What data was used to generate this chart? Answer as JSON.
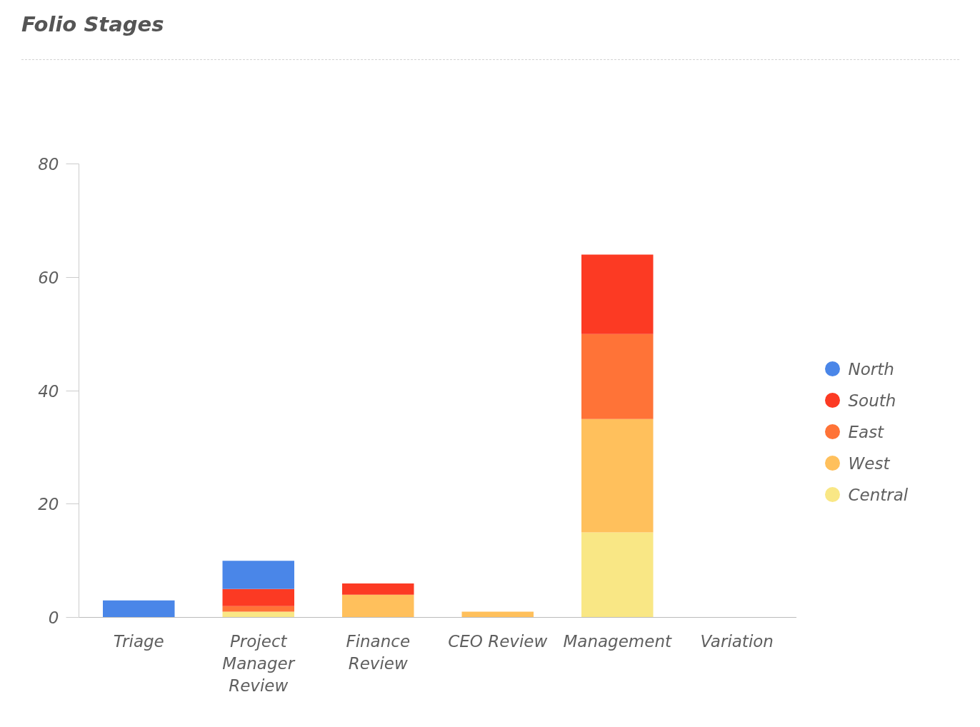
{
  "chart_data": {
    "type": "bar",
    "title": "Folio Stages",
    "categories": [
      "Triage",
      "Project Manager Review",
      "Finance Review",
      "CEO Review",
      "Management",
      "Variation"
    ],
    "stacked": true,
    "series": [
      {
        "name": "Central",
        "color": "#f9e785",
        "values": [
          0,
          1,
          0,
          0,
          15,
          0
        ]
      },
      {
        "name": "West",
        "color": "#ffc05c",
        "values": [
          0,
          0,
          4,
          1,
          20,
          0
        ]
      },
      {
        "name": "East",
        "color": "#ff7337",
        "values": [
          0,
          1,
          0,
          0,
          15,
          0
        ]
      },
      {
        "name": "South",
        "color": "#fc3a23",
        "values": [
          0,
          3,
          2,
          0,
          14,
          0
        ]
      },
      {
        "name": "North",
        "color": "#4a86e8",
        "values": [
          3,
          5,
          0,
          0,
          0,
          0
        ]
      }
    ],
    "ylim": [
      0,
      80
    ],
    "yticks": [
      0,
      20,
      40,
      60,
      80
    ],
    "grid": false,
    "legend": "right"
  }
}
